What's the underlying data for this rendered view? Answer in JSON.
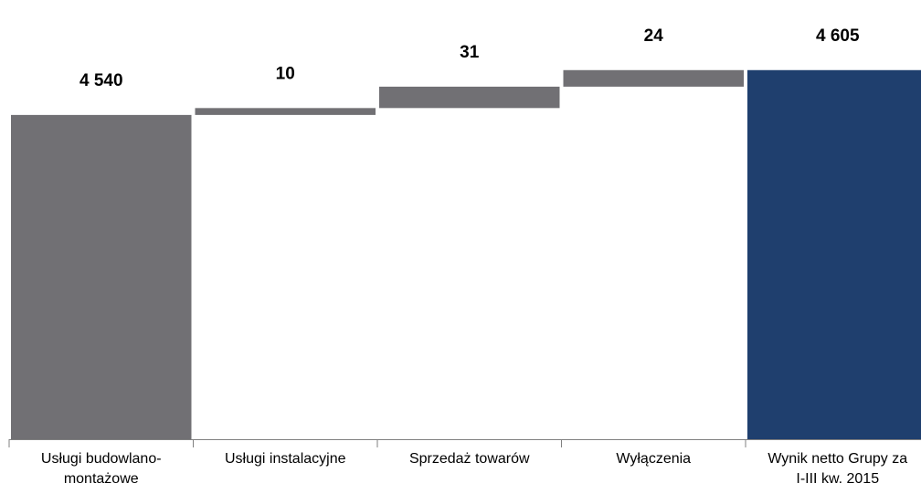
{
  "chart_data": {
    "type": "waterfall",
    "categories": [
      [
        "Usługi budowlano-",
        "montażowe"
      ],
      [
        "Usługi instalacyjne"
      ],
      [
        "Sprzedaż towarów"
      ],
      [
        "Wyłączenia"
      ],
      [
        "Wynik netto Grupy za",
        "I-III kw. 2015"
      ]
    ],
    "values": [
      4540,
      10,
      31,
      24,
      4605
    ],
    "value_labels": [
      "4 540",
      "10",
      "31",
      "24",
      "4 605"
    ],
    "colors": [
      "#717074",
      "#717074",
      "#717074",
      "#717074",
      "#1f3f6e"
    ],
    "ylim": [
      4070,
      4700
    ]
  }
}
